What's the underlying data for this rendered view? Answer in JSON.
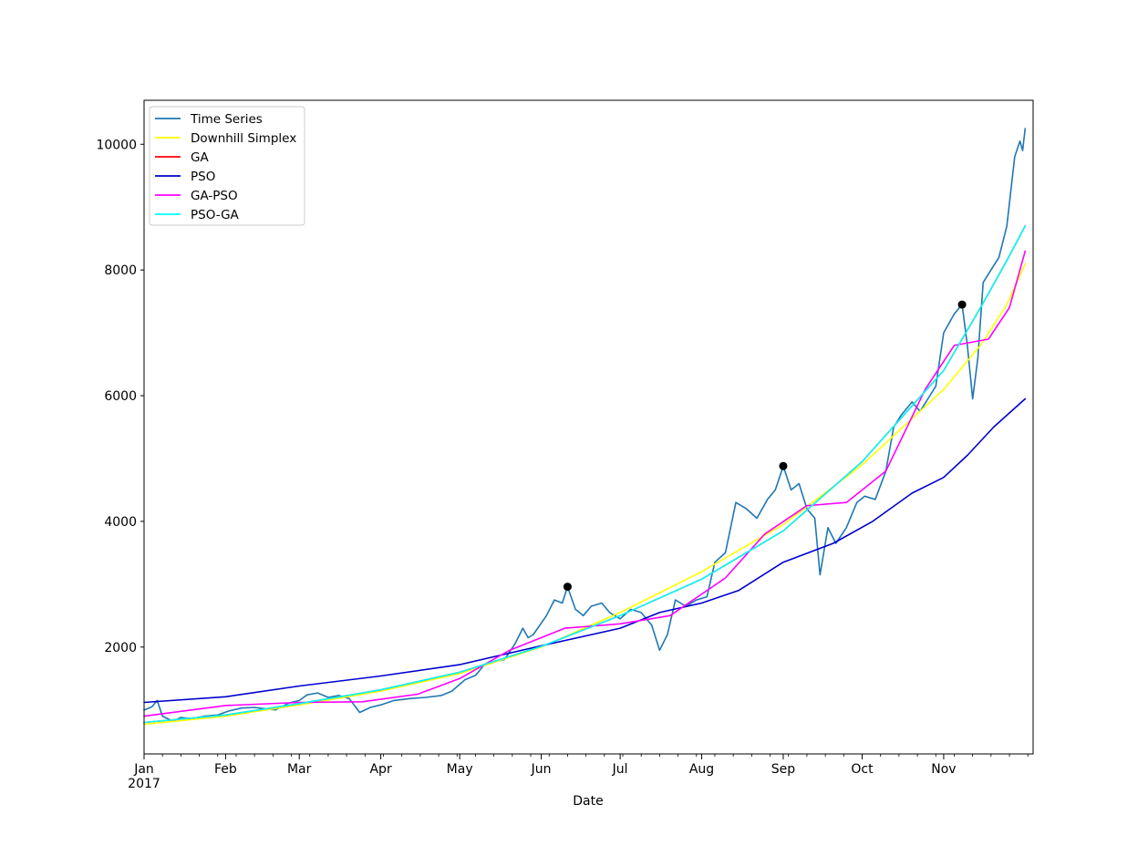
{
  "chart_data": {
    "type": "line",
    "xlabel": "Date",
    "ylabel": "",
    "x_range": [
      "2017-01-01",
      "2017-12-05"
    ],
    "ylim": [
      300,
      10700
    ],
    "grid": false,
    "legend_position": "top-left",
    "x_tick_labels": [
      {
        "date": "2017-01-01",
        "label": "Jan",
        "sublabel": "2017"
      },
      {
        "date": "2017-02-01",
        "label": "Feb",
        "sublabel": ""
      },
      {
        "date": "2017-03-01",
        "label": "Mar",
        "sublabel": ""
      },
      {
        "date": "2017-04-01",
        "label": "Apr",
        "sublabel": ""
      },
      {
        "date": "2017-05-01",
        "label": "May",
        "sublabel": ""
      },
      {
        "date": "2017-06-01",
        "label": "Jun",
        "sublabel": ""
      },
      {
        "date": "2017-07-01",
        "label": "Jul",
        "sublabel": ""
      },
      {
        "date": "2017-08-01",
        "label": "Aug",
        "sublabel": ""
      },
      {
        "date": "2017-09-01",
        "label": "Sep",
        "sublabel": ""
      },
      {
        "date": "2017-10-01",
        "label": "Oct",
        "sublabel": ""
      },
      {
        "date": "2017-11-01",
        "label": "Nov",
        "sublabel": ""
      }
    ],
    "y_ticks": [
      2000,
      4000,
      6000,
      8000,
      10000
    ],
    "series": [
      {
        "name": "Time Series",
        "color": "#1f77b4",
        "points": [
          [
            "2017-01-01",
            998
          ],
          [
            "2017-01-04",
            1050
          ],
          [
            "2017-01-06",
            1150
          ],
          [
            "2017-01-08",
            900
          ],
          [
            "2017-01-12",
            820
          ],
          [
            "2017-01-15",
            880
          ],
          [
            "2017-01-19",
            860
          ],
          [
            "2017-01-24",
            900
          ],
          [
            "2017-01-29",
            920
          ],
          [
            "2017-02-02",
            980
          ],
          [
            "2017-02-07",
            1030
          ],
          [
            "2017-02-12",
            1040
          ],
          [
            "2017-02-16",
            1020
          ],
          [
            "2017-02-20",
            1000
          ],
          [
            "2017-02-25",
            1110
          ],
          [
            "2017-03-01",
            1150
          ],
          [
            "2017-03-04",
            1240
          ],
          [
            "2017-03-08",
            1270
          ],
          [
            "2017-03-12",
            1200
          ],
          [
            "2017-03-16",
            1230
          ],
          [
            "2017-03-20",
            1180
          ],
          [
            "2017-03-24",
            960
          ],
          [
            "2017-03-28",
            1040
          ],
          [
            "2017-04-01",
            1080
          ],
          [
            "2017-04-06",
            1150
          ],
          [
            "2017-04-12",
            1180
          ],
          [
            "2017-04-18",
            1200
          ],
          [
            "2017-04-24",
            1230
          ],
          [
            "2017-04-28",
            1300
          ],
          [
            "2017-05-03",
            1480
          ],
          [
            "2017-05-07",
            1550
          ],
          [
            "2017-05-10",
            1700
          ],
          [
            "2017-05-14",
            1770
          ],
          [
            "2017-05-18",
            1800
          ],
          [
            "2017-05-22",
            2050
          ],
          [
            "2017-05-25",
            2300
          ],
          [
            "2017-05-27",
            2150
          ],
          [
            "2017-05-29",
            2200
          ],
          [
            "2017-06-03",
            2500
          ],
          [
            "2017-06-06",
            2750
          ],
          [
            "2017-06-09",
            2700
          ],
          [
            "2017-06-11",
            2960
          ],
          [
            "2017-06-14",
            2600
          ],
          [
            "2017-06-17",
            2500
          ],
          [
            "2017-06-20",
            2650
          ],
          [
            "2017-06-24",
            2700
          ],
          [
            "2017-06-27",
            2550
          ],
          [
            "2017-07-01",
            2450
          ],
          [
            "2017-07-05",
            2600
          ],
          [
            "2017-07-09",
            2550
          ],
          [
            "2017-07-13",
            2350
          ],
          [
            "2017-07-16",
            1950
          ],
          [
            "2017-07-19",
            2200
          ],
          [
            "2017-07-22",
            2750
          ],
          [
            "2017-07-26",
            2650
          ],
          [
            "2017-07-30",
            2750
          ],
          [
            "2017-08-03",
            2800
          ],
          [
            "2017-08-06",
            3350
          ],
          [
            "2017-08-10",
            3500
          ],
          [
            "2017-08-14",
            4300
          ],
          [
            "2017-08-18",
            4200
          ],
          [
            "2017-08-22",
            4050
          ],
          [
            "2017-08-26",
            4350
          ],
          [
            "2017-08-29",
            4500
          ],
          [
            "2017-09-01",
            4880
          ],
          [
            "2017-09-04",
            4500
          ],
          [
            "2017-09-07",
            4600
          ],
          [
            "2017-09-10",
            4200
          ],
          [
            "2017-09-13",
            4050
          ],
          [
            "2017-09-15",
            3150
          ],
          [
            "2017-09-18",
            3900
          ],
          [
            "2017-09-21",
            3650
          ],
          [
            "2017-09-25",
            3900
          ],
          [
            "2017-09-29",
            4300
          ],
          [
            "2017-10-02",
            4400
          ],
          [
            "2017-10-06",
            4350
          ],
          [
            "2017-10-10",
            4800
          ],
          [
            "2017-10-13",
            5500
          ],
          [
            "2017-10-16",
            5700
          ],
          [
            "2017-10-20",
            5900
          ],
          [
            "2017-10-23",
            5750
          ],
          [
            "2017-10-26",
            5950
          ],
          [
            "2017-10-29",
            6150
          ],
          [
            "2017-11-01",
            7000
          ],
          [
            "2017-11-05",
            7300
          ],
          [
            "2017-11-08",
            7450
          ],
          [
            "2017-11-10",
            6800
          ],
          [
            "2017-11-12",
            5950
          ],
          [
            "2017-11-14",
            6600
          ],
          [
            "2017-11-16",
            7800
          ],
          [
            "2017-11-19",
            8000
          ],
          [
            "2017-11-22",
            8200
          ],
          [
            "2017-11-25",
            8700
          ],
          [
            "2017-11-28",
            9800
          ],
          [
            "2017-11-30",
            10050
          ],
          [
            "2017-12-01",
            9900
          ],
          [
            "2017-12-02",
            10250
          ]
        ]
      },
      {
        "name": "Downhill Simplex",
        "color": "#ffff00",
        "points": [
          [
            "2017-01-01",
            770
          ],
          [
            "2017-02-01",
            900
          ],
          [
            "2017-03-01",
            1080
          ],
          [
            "2017-04-01",
            1300
          ],
          [
            "2017-05-01",
            1580
          ],
          [
            "2017-06-01",
            2000
          ],
          [
            "2017-07-01",
            2550
          ],
          [
            "2017-08-01",
            3200
          ],
          [
            "2017-09-01",
            3950
          ],
          [
            "2017-10-01",
            4900
          ],
          [
            "2017-11-01",
            6100
          ],
          [
            "2017-11-15",
            6800
          ],
          [
            "2017-11-25",
            7450
          ],
          [
            "2017-12-02",
            8100
          ]
        ]
      },
      {
        "name": "GA",
        "color": "#ff0000",
        "points": [
          [
            "2017-01-01",
            800
          ],
          [
            "2017-02-01",
            920
          ],
          [
            "2017-03-01",
            1100
          ],
          [
            "2017-04-01",
            1320
          ],
          [
            "2017-05-01",
            1600
          ],
          [
            "2017-06-01",
            2010
          ],
          [
            "2017-07-01",
            2500
          ],
          [
            "2017-08-01",
            3080
          ],
          [
            "2017-09-01",
            3850
          ],
          [
            "2017-10-01",
            4950
          ],
          [
            "2017-11-01",
            6400
          ],
          [
            "2017-11-15",
            7400
          ],
          [
            "2017-11-25",
            8150
          ],
          [
            "2017-12-02",
            8700
          ]
        ]
      },
      {
        "name": "PSO",
        "color": "#0000cd",
        "points": [
          [
            "2017-01-01",
            1120
          ],
          [
            "2017-02-01",
            1210
          ],
          [
            "2017-03-01",
            1380
          ],
          [
            "2017-04-01",
            1540
          ],
          [
            "2017-05-01",
            1720
          ],
          [
            "2017-06-01",
            2020
          ],
          [
            "2017-07-01",
            2300
          ],
          [
            "2017-07-16",
            2550
          ],
          [
            "2017-08-01",
            2700
          ],
          [
            "2017-08-15",
            2900
          ],
          [
            "2017-09-01",
            3350
          ],
          [
            "2017-09-20",
            3650
          ],
          [
            "2017-10-05",
            4000
          ],
          [
            "2017-10-20",
            4450
          ],
          [
            "2017-11-01",
            4700
          ],
          [
            "2017-11-10",
            5050
          ],
          [
            "2017-11-20",
            5500
          ],
          [
            "2017-12-02",
            5950
          ]
        ]
      },
      {
        "name": "GA-PSO",
        "color": "#ff00ff",
        "points": [
          [
            "2017-01-01",
            900
          ],
          [
            "2017-02-01",
            1070
          ],
          [
            "2017-03-01",
            1120
          ],
          [
            "2017-03-25",
            1130
          ],
          [
            "2017-04-15",
            1250
          ],
          [
            "2017-05-01",
            1500
          ],
          [
            "2017-05-20",
            1950
          ],
          [
            "2017-06-10",
            2300
          ],
          [
            "2017-07-01",
            2370
          ],
          [
            "2017-07-20",
            2500
          ],
          [
            "2017-08-10",
            3100
          ],
          [
            "2017-08-25",
            3800
          ],
          [
            "2017-09-10",
            4250
          ],
          [
            "2017-09-25",
            4300
          ],
          [
            "2017-10-10",
            4800
          ],
          [
            "2017-10-25",
            6100
          ],
          [
            "2017-11-05",
            6800
          ],
          [
            "2017-11-18",
            6900
          ],
          [
            "2017-11-26",
            7400
          ],
          [
            "2017-12-02",
            8300
          ]
        ]
      },
      {
        "name": "PSO-GA",
        "color": "#00ffff",
        "points": [
          [
            "2017-01-01",
            800
          ],
          [
            "2017-02-01",
            920
          ],
          [
            "2017-03-01",
            1100
          ],
          [
            "2017-04-01",
            1320
          ],
          [
            "2017-05-01",
            1600
          ],
          [
            "2017-06-01",
            2010
          ],
          [
            "2017-07-01",
            2500
          ],
          [
            "2017-08-01",
            3080
          ],
          [
            "2017-09-01",
            3850
          ],
          [
            "2017-10-01",
            4950
          ],
          [
            "2017-11-01",
            6400
          ],
          [
            "2017-11-15",
            7400
          ],
          [
            "2017-11-25",
            8150
          ],
          [
            "2017-12-02",
            8700
          ]
        ]
      }
    ],
    "markers": [
      {
        "date": "2017-06-11",
        "value": 2960
      },
      {
        "date": "2017-09-01",
        "value": 4880
      },
      {
        "date": "2017-11-08",
        "value": 7450
      }
    ]
  }
}
